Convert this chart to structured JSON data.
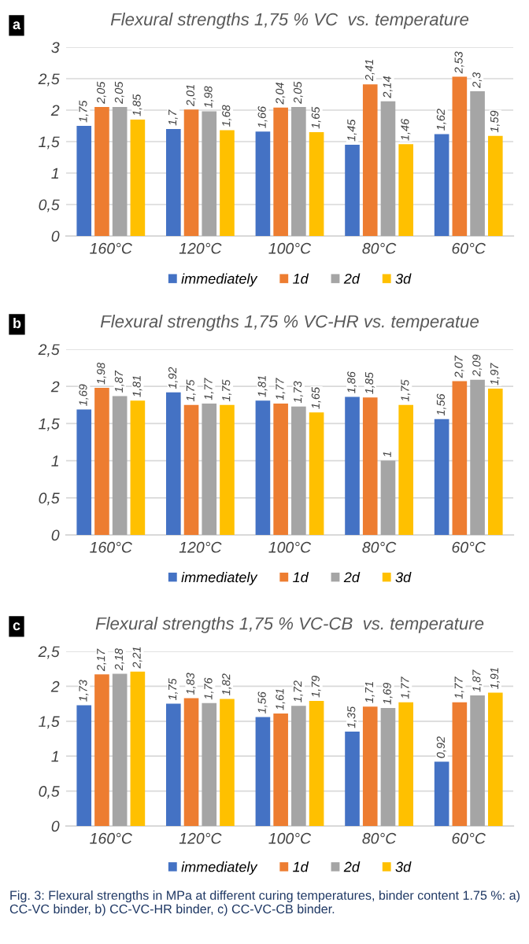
{
  "chart_data": [
    {
      "type": "bar",
      "title": "Flexural strengths 1,75 % VC  vs. temperature",
      "annotations": [
        "a"
      ],
      "categories": [
        "160°C",
        "120°C",
        "100°C",
        "80°C",
        "60°C"
      ],
      "series": [
        {
          "name": "immediately",
          "color": "#4472c4",
          "values": [
            1.75,
            1.7,
            1.66,
            1.45,
            1.62
          ],
          "value_labels": [
            "1,75",
            "1,7",
            "1,66",
            "1,45",
            "1,62"
          ]
        },
        {
          "name": "1d",
          "color": "#ed7d31",
          "values": [
            2.05,
            2.01,
            2.04,
            2.41,
            2.53
          ],
          "value_labels": [
            "2,05",
            "2,01",
            "2,04",
            "2,41",
            "2,53"
          ]
        },
        {
          "name": "2d",
          "color": "#a5a5a5",
          "values": [
            2.05,
            1.98,
            2.05,
            2.14,
            2.3
          ],
          "value_labels": [
            "2,05",
            "1,98",
            "2,05",
            "2,14",
            "2,3"
          ]
        },
        {
          "name": "3d",
          "color": "#ffc000",
          "values": [
            1.85,
            1.68,
            1.65,
            1.46,
            1.59
          ],
          "value_labels": [
            "1,85",
            "1,68",
            "1,65",
            "1,46",
            "1,59"
          ]
        }
      ],
      "ylim": [
        0,
        3
      ],
      "yticks": [
        0,
        {
          "value": 0.5,
          "label": "0,5"
        },
        1,
        {
          "value": 1.5,
          "label": "1,5"
        },
        2,
        {
          "value": 2.5,
          "label": "2,5"
        },
        3
      ],
      "grid": "y",
      "legend": "bottom"
    },
    {
      "type": "bar",
      "title": "Flexural strengths 1,75 % VC-HR vs. temperatue",
      "annotations": [
        "b"
      ],
      "categories": [
        "160°C",
        "120°C",
        "100°C",
        "80°C",
        "60°C"
      ],
      "series": [
        {
          "name": "immediately",
          "color": "#4472c4",
          "values": [
            1.69,
            1.92,
            1.81,
            1.86,
            1.56
          ],
          "value_labels": [
            "1,69",
            "1,92",
            "1,81",
            "1,86",
            "1,56"
          ]
        },
        {
          "name": "1d",
          "color": "#ed7d31",
          "values": [
            1.98,
            1.75,
            1.77,
            1.85,
            2.07
          ],
          "value_labels": [
            "1,98",
            "1,75",
            "1,77",
            "1,85",
            "2,07"
          ]
        },
        {
          "name": "2d",
          "color": "#a5a5a5",
          "values": [
            1.87,
            1.77,
            1.73,
            1,
            2.09
          ],
          "value_labels": [
            "1,87",
            "1,77",
            "1,73",
            "1",
            "2,09"
          ]
        },
        {
          "name": "3d",
          "color": "#ffc000",
          "values": [
            1.81,
            1.75,
            1.65,
            1.75,
            1.97
          ],
          "value_labels": [
            "1,81",
            "1,75",
            "1,65",
            "1,75",
            "1,97"
          ]
        }
      ],
      "ylim": [
        0,
        2.5
      ],
      "yticks": [
        0,
        {
          "value": 0.5,
          "label": "0,5"
        },
        1,
        {
          "value": 1.5,
          "label": "1,5"
        },
        2,
        {
          "value": 2.5,
          "label": "2,5"
        }
      ],
      "grid": "y",
      "legend": "bottom"
    },
    {
      "type": "bar",
      "title": "Flexural strengths 1,75 % VC-CB  vs. temperature",
      "annotations": [
        "c",
        "Fig. 3: Flexural strengths in MPa at different curing temperatures, binder content 1.75 %: a) CC-VC binder, b) CC-VC-HR binder, c) CC-VC-CB binder."
      ],
      "categories": [
        "160°C",
        "120°C",
        "100°C",
        "80°C",
        "60°C"
      ],
      "series": [
        {
          "name": "immediately",
          "color": "#4472c4",
          "values": [
            1.73,
            1.75,
            1.56,
            1.35,
            0.92
          ],
          "value_labels": [
            "1,73",
            "1,75",
            "1,56",
            "1,35",
            "0,92"
          ]
        },
        {
          "name": "1d",
          "color": "#ed7d31",
          "values": [
            2.17,
            1.83,
            1.61,
            1.71,
            1.77
          ],
          "value_labels": [
            "2,17",
            "1,83",
            "1,61",
            "1,71",
            "1,77"
          ]
        },
        {
          "name": "2d",
          "color": "#a5a5a5",
          "values": [
            2.18,
            1.76,
            1.72,
            1.69,
            1.87
          ],
          "value_labels": [
            "2,18",
            "1,76",
            "1,72",
            "1,69",
            "1,87"
          ]
        },
        {
          "name": "3d",
          "color": "#ffc000",
          "values": [
            2.21,
            1.82,
            1.79,
            1.77,
            1.91
          ],
          "value_labels": [
            "2,21",
            "1,82",
            "1,79",
            "1,77",
            "1,91"
          ]
        }
      ],
      "ylim": [
        0,
        2.5
      ],
      "yticks": [
        0,
        {
          "value": 0.5,
          "label": "0,5"
        },
        1,
        {
          "value": 1.5,
          "label": "1,5"
        },
        2,
        {
          "value": 2.5,
          "label": "2,5"
        }
      ],
      "grid": "y",
      "legend": "bottom"
    }
  ]
}
